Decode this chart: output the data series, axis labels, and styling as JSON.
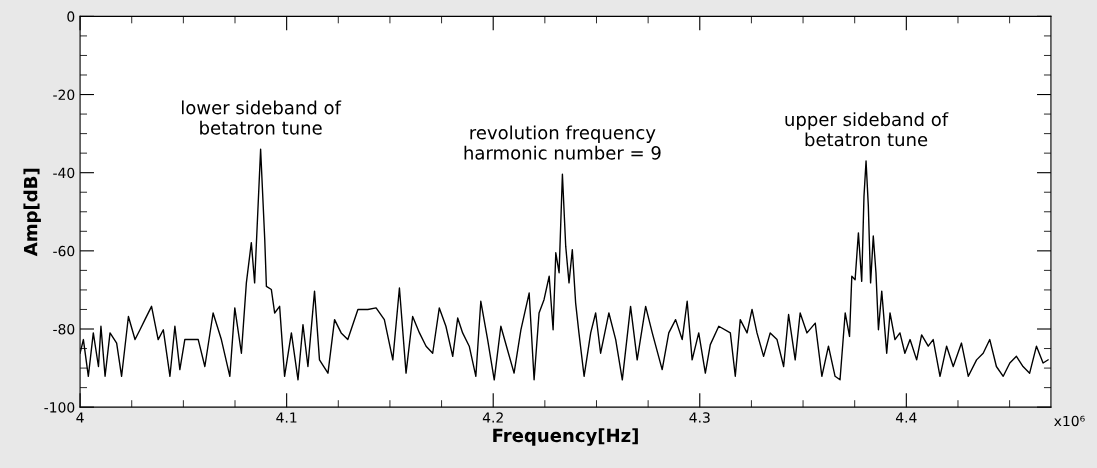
{
  "chart_data": {
    "type": "line",
    "xlabel": "Frequency[Hz]",
    "ylabel": "Amp[dB]",
    "xlim": [
      4,
      4.47
    ],
    "xticks": [
      4,
      4.1,
      4.2,
      4.3,
      4.4
    ],
    "ylim": [
      -100,
      0
    ],
    "yticks": [
      0,
      -20,
      -40,
      -60,
      -80,
      -100
    ],
    "grid": false,
    "marker": "none",
    "line_style": "solid",
    "annotations": [
      {
        "text": "lower sideband of\nbetatron tune",
        "x": 4.0874,
        "y": -34.0
      },
      {
        "text": "revolution frequency\nharmonic number = 9",
        "x": 4.2335,
        "y": -40.4
      },
      {
        "text": "upper sideband of\nbetatron tune",
        "x": 4.3805,
        "y": -37.0
      },
      "x10⁶"
    ],
    "series": [
      {
        "color": "#000000",
        "x": [
          4.0,
          4.0016,
          4.004,
          4.0064,
          4.0089,
          4.0101,
          4.0121,
          4.0145,
          4.0177,
          4.0201,
          4.0234,
          4.0266,
          4.029,
          4.0314,
          4.0346,
          4.0378,
          4.0403,
          4.0435,
          4.0459,
          4.0483,
          4.0507,
          4.0539,
          4.0572,
          4.0604,
          4.0644,
          4.0684,
          4.0725,
          4.0749,
          4.0781,
          4.0805,
          4.0829,
          4.0845,
          4.0874,
          4.0894,
          4.0902,
          4.0926,
          4.0942,
          4.0966,
          4.099,
          4.1023,
          4.1055,
          4.1079,
          4.1103,
          4.1135,
          4.1159,
          4.12,
          4.1232,
          4.1264,
          4.1296,
          4.1345,
          4.1393,
          4.1433,
          4.1473,
          4.1514,
          4.1546,
          4.1578,
          4.161,
          4.1643,
          4.1675,
          4.1707,
          4.1739,
          4.1771,
          4.1804,
          4.1828,
          4.1852,
          4.1884,
          4.1916,
          4.194,
          4.1973,
          4.2005,
          4.2037,
          4.2069,
          4.2101,
          4.2134,
          4.2174,
          4.2198,
          4.2222,
          4.2246,
          4.2271,
          4.229,
          4.2303,
          4.2319,
          4.2335,
          4.2351,
          4.2367,
          4.2383,
          4.2399,
          4.2415,
          4.244,
          4.2472,
          4.2496,
          4.252,
          4.256,
          4.2593,
          4.2625,
          4.2665,
          4.2697,
          4.2738,
          4.277,
          4.2818,
          4.285,
          4.2883,
          4.2915,
          4.2939,
          4.2963,
          4.2995,
          4.3027,
          4.3051,
          4.3092,
          4.3148,
          4.3172,
          4.3196,
          4.3229,
          4.3253,
          4.3277,
          4.3309,
          4.3341,
          4.3374,
          4.3406,
          4.343,
          4.3462,
          4.3486,
          4.3519,
          4.3559,
          4.3591,
          4.3623,
          4.3655,
          4.3679,
          4.3704,
          4.3725,
          4.3736,
          4.3752,
          4.3768,
          4.3784,
          4.3795,
          4.3805,
          4.3816,
          4.3827,
          4.384,
          4.3853,
          4.3865,
          4.3881,
          4.3905,
          4.3921,
          4.3945,
          4.3969,
          4.3993,
          4.4018,
          4.405,
          4.4074,
          4.4106,
          4.413,
          4.4163,
          4.4195,
          4.4227,
          4.4267,
          4.43,
          4.434,
          4.4372,
          4.4404,
          4.4436,
          4.4469,
          4.4501,
          4.4533,
          4.4565,
          4.4597,
          4.463,
          4.4662,
          4.4686
        ],
        "values": [
          -86.2,
          -82.7,
          -92.1,
          -81.0,
          -89.6,
          -79.3,
          -92.1,
          -81.0,
          -83.6,
          -92.1,
          -76.8,
          -82.7,
          -80.2,
          -77.6,
          -74.2,
          -82.7,
          -80.2,
          -92.1,
          -79.3,
          -90.4,
          -82.7,
          -82.7,
          -82.7,
          -89.6,
          -75.9,
          -82.7,
          -92.1,
          -74.6,
          -86.2,
          -68.2,
          -57.9,
          -68.2,
          -34.0,
          -57.1,
          -69.1,
          -69.9,
          -75.9,
          -74.2,
          -92.1,
          -81.0,
          -93.0,
          -78.9,
          -89.6,
          -70.3,
          -87.9,
          -91.3,
          -77.6,
          -81.0,
          -82.7,
          -75.0,
          -75.0,
          -74.6,
          -77.6,
          -87.9,
          -69.5,
          -91.3,
          -76.8,
          -81.0,
          -84.4,
          -86.2,
          -74.6,
          -79.3,
          -87.0,
          -77.2,
          -81.0,
          -84.4,
          -92.1,
          -72.9,
          -82.7,
          -93.0,
          -79.3,
          -85.3,
          -91.3,
          -80.2,
          -70.8,
          -93.0,
          -75.9,
          -72.5,
          -66.5,
          -80.2,
          -60.5,
          -65.6,
          -40.4,
          -58.8,
          -68.2,
          -59.7,
          -73.3,
          -81.0,
          -92.1,
          -81.0,
          -75.9,
          -86.2,
          -75.9,
          -82.7,
          -93.0,
          -74.2,
          -87.9,
          -74.2,
          -81.0,
          -90.4,
          -81.0,
          -77.6,
          -82.7,
          -72.9,
          -87.9,
          -81.0,
          -91.3,
          -84.0,
          -79.3,
          -81.0,
          -92.1,
          -77.6,
          -81.0,
          -75.0,
          -81.0,
          -87.0,
          -81.0,
          -82.7,
          -89.6,
          -76.3,
          -87.9,
          -75.9,
          -81.0,
          -78.5,
          -92.1,
          -84.4,
          -92.1,
          -93.0,
          -75.9,
          -81.9,
          -66.5,
          -67.4,
          -55.4,
          -67.8,
          -46.0,
          -37.0,
          -48.5,
          -68.2,
          -56.2,
          -65.6,
          -80.2,
          -70.3,
          -86.2,
          -75.9,
          -82.7,
          -81.0,
          -86.2,
          -82.7,
          -87.9,
          -81.5,
          -84.4,
          -82.7,
          -92.1,
          -84.4,
          -89.6,
          -83.6,
          -92.1,
          -87.9,
          -86.2,
          -82.7,
          -89.6,
          -92.1,
          -88.7,
          -87.0,
          -89.6,
          -91.3,
          -84.4,
          -88.7,
          -87.9
        ]
      }
    ]
  }
}
